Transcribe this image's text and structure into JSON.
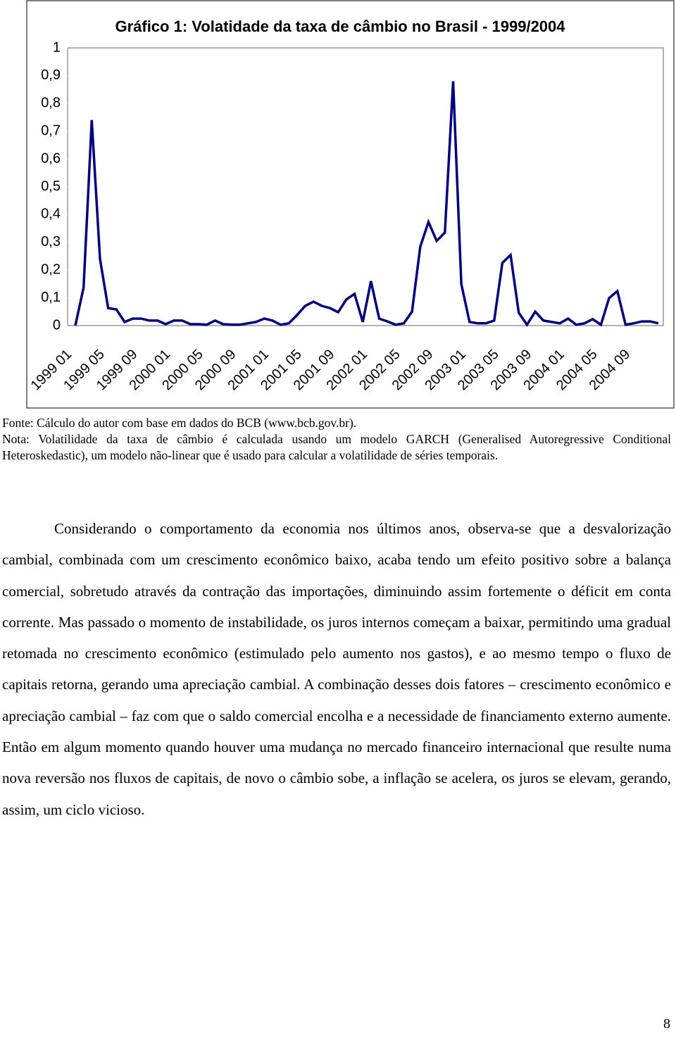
{
  "chart_data": {
    "type": "line",
    "title": "Gráfico 1: Volatidade da taxa de câmbio no Brasil - 1999/2004",
    "categories": [
      "1999 01",
      null,
      null,
      null,
      "1999 05",
      null,
      null,
      null,
      "1999 09",
      null,
      null,
      null,
      "2000 01",
      null,
      null,
      null,
      "2000 05",
      null,
      null,
      null,
      "2000 09",
      null,
      null,
      null,
      "2001 01",
      null,
      null,
      null,
      "2001 05",
      null,
      null,
      null,
      "2001 09",
      null,
      null,
      null,
      "2002 01",
      null,
      null,
      null,
      "2002 05",
      null,
      null,
      null,
      "2002 09",
      null,
      null,
      null,
      "2003 01",
      null,
      null,
      null,
      "2003 05",
      null,
      null,
      null,
      "2003 09",
      null,
      null,
      null,
      "2004 01",
      null,
      null,
      null,
      "2004 05",
      null,
      null,
      null,
      "2004 09",
      null,
      null,
      null
    ],
    "series": [
      {
        "color": "#000080",
        "values": [
          0.0,
          0.137,
          0.74,
          0.24,
          0.063,
          0.058,
          0.013,
          0.025,
          0.025,
          0.018,
          0.018,
          0.005,
          0.018,
          0.018,
          0.005,
          0.005,
          0.003,
          0.018,
          0.005,
          0.003,
          0.003,
          0.008,
          0.013,
          0.025,
          0.018,
          0.003,
          0.008,
          0.038,
          0.071,
          0.086,
          0.071,
          0.063,
          0.048,
          0.094,
          0.114,
          0.013,
          0.16,
          0.025,
          0.015,
          0.003,
          0.008,
          0.05,
          0.284,
          0.373,
          0.305,
          0.335,
          0.88,
          0.15,
          0.013,
          0.008,
          0.008,
          0.018,
          0.226,
          0.254,
          0.046,
          0.003,
          0.05,
          0.018,
          0.013,
          0.008,
          0.025,
          0.003,
          0.008,
          0.023,
          0.003,
          0.099,
          0.124,
          0.003,
          0.008,
          0.015,
          0.015,
          0.008
        ]
      }
    ],
    "ylim": [
      0,
      1
    ],
    "yticks": [
      0,
      {
        "value": 0.1,
        "label": "0,1"
      },
      {
        "value": 0.2,
        "label": "0,2"
      },
      {
        "value": 0.3,
        "label": "0,3"
      },
      {
        "value": 0.4,
        "label": "0,4"
      },
      {
        "value": 0.5,
        "label": "0,5"
      },
      {
        "value": 0.6,
        "label": "0,6"
      },
      {
        "value": 0.7,
        "label": "0,7"
      },
      {
        "value": 0.8,
        "label": "0,8"
      },
      {
        "value": 0.9,
        "label": "0,9"
      },
      1
    ],
    "grid": false
  },
  "document": {
    "source": "Fonte: Cálculo do autor com base em dados do BCB (www.bcb.gov.br).",
    "note": "Nota: Volatilidade da taxa de câmbio é calculada usando um modelo GARCH (Generalised Autoregressive Conditional Heteroskedastic), um modelo não-linear que é usado para calcular a volatilidade de séries temporais.",
    "paragraph": "Considerando o comportamento da economia nos últimos anos, observa-se que a desvalorização cambial, combinada com um crescimento econômico baixo, acaba tendo um efeito positivo sobre a balança comercial, sobretudo através da contração das importações, diminuindo assim fortemente o déficit em conta corrente. Mas passado o momento de instabilidade, os juros internos começam a baixar, permitindo uma gradual retomada no crescimento econômico (estimulado pelo aumento nos gastos), e ao mesmo tempo o fluxo de capitais retorna, gerando uma apreciação cambial. A combinação desses dois fatores – crescimento econômico e apreciação cambial – faz com que o saldo comercial encolha e a necessidade de financiamento externo aumente. Então em algum momento quando houver uma mudança no mercado financeiro internacional que resulte numa nova reversão nos fluxos de capitais, de novo o câmbio sobe, a inflação se acelera, os juros se elevam, gerando, assim, um ciclo vicioso.",
    "page_number": "8"
  }
}
